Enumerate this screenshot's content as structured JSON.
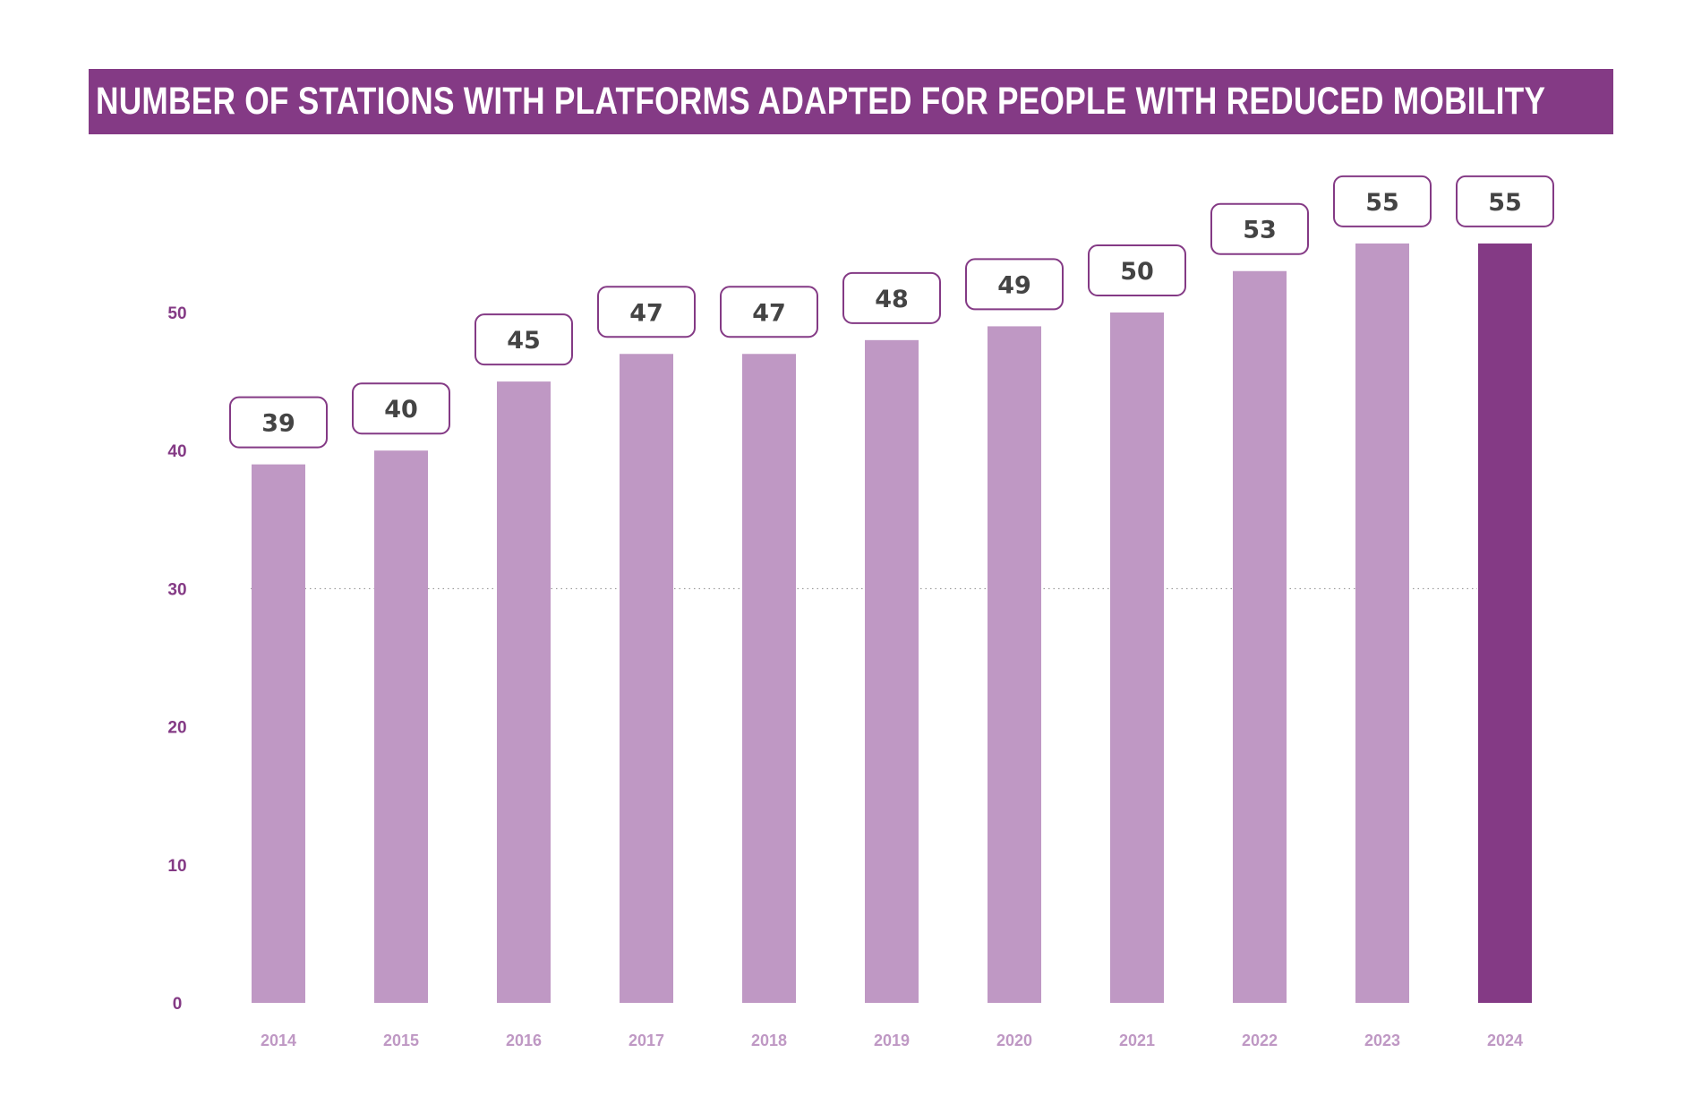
{
  "chart_data": {
    "type": "bar",
    "title": "NUMBER OF STATIONS WITH PLATFORMS ADAPTED FOR PEOPLE WITH REDUCED MOBILITY",
    "categories": [
      "2014",
      "2015",
      "2016",
      "2017",
      "2018",
      "2019",
      "2020",
      "2021",
      "2022",
      "2023",
      "2024"
    ],
    "values": [
      39,
      40,
      45,
      47,
      47,
      48,
      49,
      50,
      53,
      55,
      55
    ],
    "highlight_index": 10,
    "xlabel": "",
    "ylabel": "",
    "ylim": [
      0,
      55
    ],
    "yticks": [
      0,
      10,
      20,
      30,
      40,
      50
    ],
    "gridline_at": 30,
    "grid": "dotted line at 30",
    "legend": "none",
    "colors": {
      "banner": "#843a85",
      "bar": "#bf98c4",
      "bar_highlight": "#843a85",
      "ytick_text": "#843a85",
      "xtick_text": "#bf98c4",
      "label_border": "#843a85",
      "label_text": "#444444",
      "gridline": "#888888"
    }
  }
}
